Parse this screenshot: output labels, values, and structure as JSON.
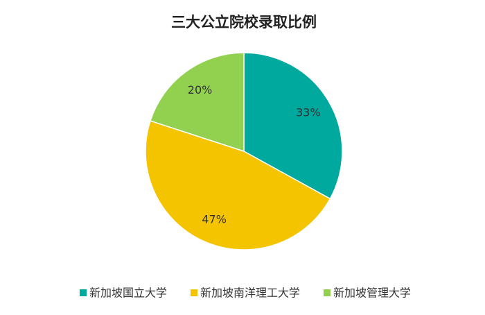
{
  "chart_data": {
    "type": "pie",
    "title": "三大公立院校录取比例",
    "categories": [
      "新加坡国立大学",
      "新加坡南洋理工大学",
      "新加坡管理大学"
    ],
    "values": [
      33,
      47,
      20
    ],
    "value_labels": [
      "33%",
      "47%",
      "20%"
    ],
    "colors": [
      "#00a99d",
      "#f5c400",
      "#92d050"
    ],
    "legend": "bottom"
  }
}
